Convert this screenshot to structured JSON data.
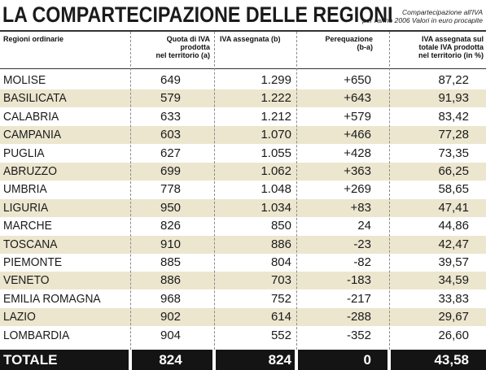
{
  "title": "LA COMPARTECIPAZIONE DELLE REGIONI",
  "subtitle": [
    "Compartecipazione all'IVA",
    "per l'anno 2006 Valori in euro procapite"
  ],
  "headers": {
    "region": "Regioni ordinarie",
    "quota": [
      "Quota di IVA",
      "prodotta",
      "nel territorio (a)"
    ],
    "iva": "IVA assegnata (b)",
    "pereq": [
      "Perequazione",
      "(b-a)"
    ],
    "pct": [
      "IVA assegnata sul",
      "totale IVA prodotta",
      "nel territorio (in %)"
    ]
  },
  "rows": [
    {
      "region": "MOLISE",
      "quota": "649",
      "iva": "1.299",
      "pereq": "+650",
      "pct": "87,22"
    },
    {
      "region": "BASILICATA",
      "quota": "579",
      "iva": "1.222",
      "pereq": "+643",
      "pct": "91,93"
    },
    {
      "region": "CALABRIA",
      "quota": "633",
      "iva": "1.212",
      "pereq": "+579",
      "pct": "83,42"
    },
    {
      "region": "CAMPANIA",
      "quota": "603",
      "iva": "1.070",
      "pereq": "+466",
      "pct": "77,28"
    },
    {
      "region": "PUGLIA",
      "quota": "627",
      "iva": "1.055",
      "pereq": "+428",
      "pct": "73,35"
    },
    {
      "region": "ABRUZZO",
      "quota": "699",
      "iva": "1.062",
      "pereq": "+363",
      "pct": "66,25"
    },
    {
      "region": "UMBRIA",
      "quota": "778",
      "iva": "1.048",
      "pereq": "+269",
      "pct": "58,65"
    },
    {
      "region": "LIGURIA",
      "quota": "950",
      "iva": "1.034",
      "pereq": "+83",
      "pct": "47,41"
    },
    {
      "region": "MARCHE",
      "quota": "826",
      "iva": "850",
      "pereq": "24",
      "pct": "44,86"
    },
    {
      "region": "TOSCANA",
      "quota": "910",
      "iva": "886",
      "pereq": "-23",
      "pct": "42,47"
    },
    {
      "region": "PIEMONTE",
      "quota": "885",
      "iva": "804",
      "pereq": "-82",
      "pct": "39,57"
    },
    {
      "region": "VENETO",
      "quota": "886",
      "iva": "703",
      "pereq": "-183",
      "pct": "34,59"
    },
    {
      "region": "EMILIA ROMAGNA",
      "quota": "968",
      "iva": "752",
      "pereq": "-217",
      "pct": "33,83"
    },
    {
      "region": "LAZIO",
      "quota": "902",
      "iva": "614",
      "pereq": "-288",
      "pct": "29,67"
    },
    {
      "region": "LOMBARDIA",
      "quota": "904",
      "iva": "552",
      "pereq": "-352",
      "pct": "26,60"
    }
  ],
  "total": {
    "region": "TOTALE",
    "quota": "824",
    "iva": "824",
    "pereq": "0",
    "pct": "43,58"
  },
  "colors": {
    "shade": "#ece6cf",
    "total_bg": "#141414",
    "text": "#1a1a1a"
  }
}
